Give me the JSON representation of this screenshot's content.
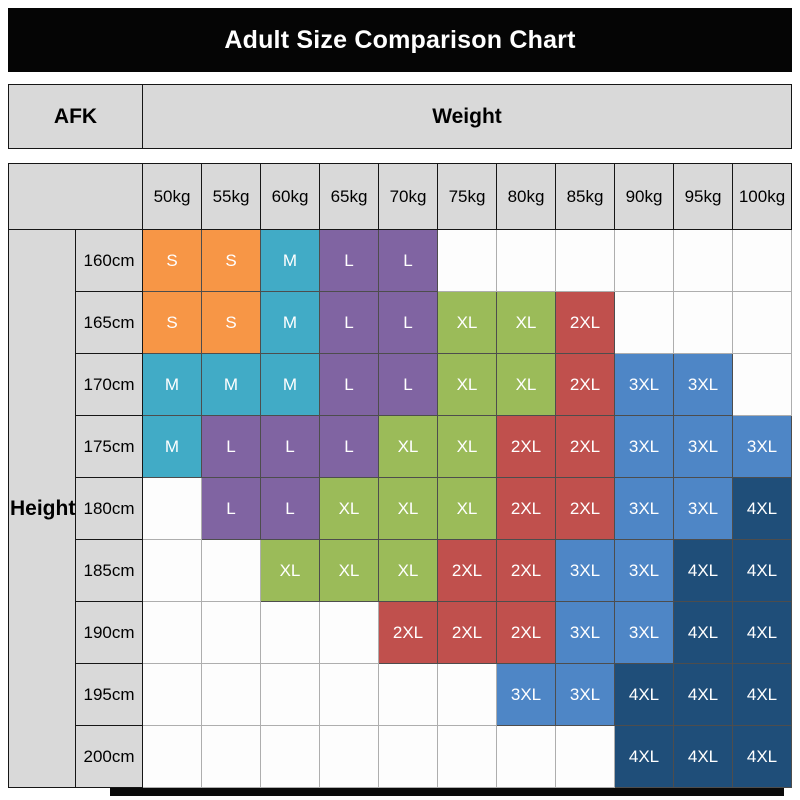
{
  "labels": {
    "title": "Adult Size Comparison Chart",
    "corner": "AFK",
    "weight": "Weight",
    "height": "Height"
  },
  "chart_data": {
    "type": "heatmap",
    "title": "Adult Size Comparison Chart",
    "x_label": "Weight",
    "y_label": "Height",
    "x_categories": [
      "50kg",
      "55kg",
      "60kg",
      "65kg",
      "70kg",
      "75kg",
      "80kg",
      "85kg",
      "90kg",
      "95kg",
      "100kg"
    ],
    "y_categories": [
      "160cm",
      "165cm",
      "170cm",
      "175cm",
      "180cm",
      "185cm",
      "190cm",
      "195cm",
      "200cm"
    ],
    "values": [
      [
        "S",
        "S",
        "M",
        "L",
        "L",
        "",
        "",
        "",
        "",
        "",
        ""
      ],
      [
        "S",
        "S",
        "M",
        "L",
        "L",
        "XL",
        "XL",
        "2XL",
        "",
        "",
        ""
      ],
      [
        "M",
        "M",
        "M",
        "L",
        "L",
        "XL",
        "XL",
        "2XL",
        "3XL",
        "3XL",
        ""
      ],
      [
        "M",
        "L",
        "L",
        "L",
        "XL",
        "XL",
        "2XL",
        "2XL",
        "3XL",
        "3XL",
        "3XL"
      ],
      [
        "",
        "L",
        "L",
        "XL",
        "XL",
        "XL",
        "2XL",
        "2XL",
        "3XL",
        "3XL",
        "4XL"
      ],
      [
        "",
        "",
        "XL",
        "XL",
        "XL",
        "2XL",
        "2XL",
        "3XL",
        "3XL",
        "4XL",
        "4XL"
      ],
      [
        "",
        "",
        "",
        "",
        "2XL",
        "2XL",
        "2XL",
        "3XL",
        "3XL",
        "4XL",
        "4XL"
      ],
      [
        "",
        "",
        "",
        "",
        "",
        "",
        "3XL",
        "3XL",
        "4XL",
        "4XL",
        "4XL"
      ],
      [
        "",
        "",
        "",
        "",
        "",
        "",
        "",
        "",
        "4XL",
        "4XL",
        "4XL"
      ]
    ],
    "size_colors": {
      "S": "#F79646",
      "M": "#41ABC6",
      "L": "#8064A2",
      "XL": "#9BBB59",
      "2XL": "#C0504D",
      "3XL": "#4E86C6",
      "4XL": "#1F4E79"
    },
    "header_background": "#D9D9D9",
    "title_bar_background": "#050505"
  }
}
